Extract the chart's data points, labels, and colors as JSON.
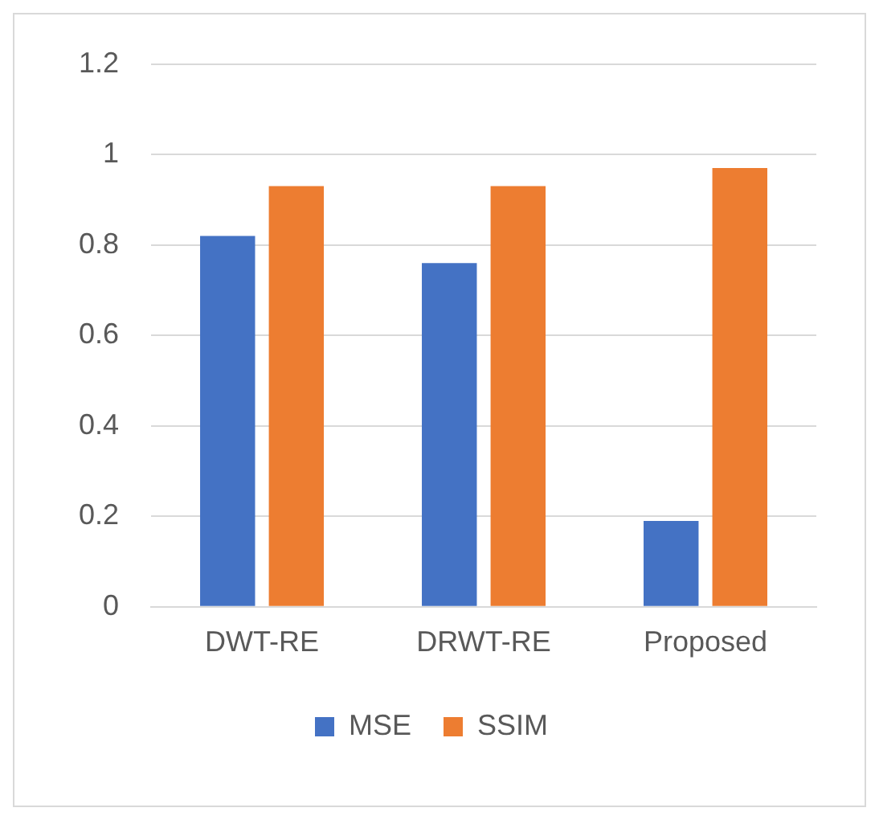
{
  "chart_data": {
    "type": "bar",
    "categories": [
      "DWT-RE",
      "DRWT-RE",
      "Proposed"
    ],
    "series": [
      {
        "name": "MSE",
        "color": "#4472c4",
        "values": [
          0.82,
          0.76,
          0.19
        ]
      },
      {
        "name": "SSIM",
        "color": "#ed7d31",
        "values": [
          0.93,
          0.93,
          0.97
        ]
      }
    ],
    "ylim": [
      0,
      1.2
    ],
    "yticks": [
      0,
      0.2,
      0.4,
      0.6,
      0.8,
      1,
      1.2
    ],
    "grid": "y",
    "legend": "bottom"
  }
}
